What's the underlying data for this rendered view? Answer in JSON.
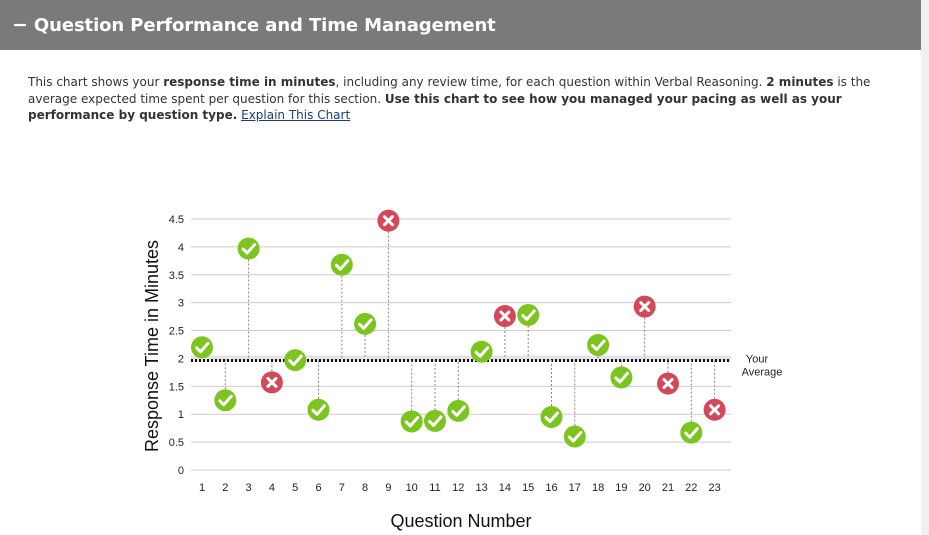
{
  "header": {
    "toggle": "−",
    "title": "Question Performance and Time Management"
  },
  "description": {
    "p1": "This chart shows your ",
    "b1": "response time in minutes",
    "p2": ", including any review time, for each question within Verbal Reasoning. ",
    "b2": "2 minutes",
    "p3": " is the average expected time spent per question for this section. ",
    "b3": "Use this chart to see how you managed your pacing as well as your performance by question type.",
    "link": "Explain This Chart"
  },
  "colors": {
    "header_bg": "#7a7a7a",
    "correct": "#7cc41f",
    "incorrect": "#d3495b",
    "grid": "#cccccc"
  },
  "chart_data": {
    "type": "scatter",
    "xlabel": "Question Number",
    "ylabel": "Response Time in Minutes",
    "ylim": [
      0,
      4.5
    ],
    "yticks": [
      "0",
      "0.5",
      "1",
      "1.5",
      "2",
      "2.5",
      "3",
      "3.5",
      "4",
      "4.5"
    ],
    "grid": true,
    "average": {
      "value": 2,
      "label_line1": "Your",
      "label_line2": "Average"
    },
    "legend_markers": {
      "correct": "check-icon",
      "incorrect": "x-icon"
    },
    "points": [
      {
        "q": "1",
        "t": 2.2,
        "result": "correct"
      },
      {
        "q": "2",
        "t": 1.25,
        "result": "correct"
      },
      {
        "q": "3",
        "t": 3.97,
        "result": "correct"
      },
      {
        "q": "4",
        "t": 1.57,
        "result": "incorrect"
      },
      {
        "q": "5",
        "t": 1.97,
        "result": "correct"
      },
      {
        "q": "6",
        "t": 1.08,
        "result": "correct"
      },
      {
        "q": "7",
        "t": 3.68,
        "result": "correct"
      },
      {
        "q": "8",
        "t": 2.62,
        "result": "correct"
      },
      {
        "q": "9",
        "t": 4.47,
        "result": "incorrect"
      },
      {
        "q": "10",
        "t": 0.87,
        "result": "correct"
      },
      {
        "q": "11",
        "t": 0.88,
        "result": "correct"
      },
      {
        "q": "12",
        "t": 1.06,
        "result": "correct"
      },
      {
        "q": "13",
        "t": 2.12,
        "result": "correct"
      },
      {
        "q": "14",
        "t": 2.76,
        "result": "incorrect"
      },
      {
        "q": "15",
        "t": 2.78,
        "result": "correct"
      },
      {
        "q": "16",
        "t": 0.95,
        "result": "correct"
      },
      {
        "q": "17",
        "t": 0.6,
        "result": "correct"
      },
      {
        "q": "18",
        "t": 2.24,
        "result": "correct"
      },
      {
        "q": "19",
        "t": 1.66,
        "result": "correct"
      },
      {
        "q": "20",
        "t": 2.93,
        "result": "incorrect"
      },
      {
        "q": "21",
        "t": 1.55,
        "result": "incorrect"
      },
      {
        "q": "22",
        "t": 0.67,
        "result": "correct"
      },
      {
        "q": "23",
        "t": 1.08,
        "result": "incorrect"
      }
    ]
  }
}
